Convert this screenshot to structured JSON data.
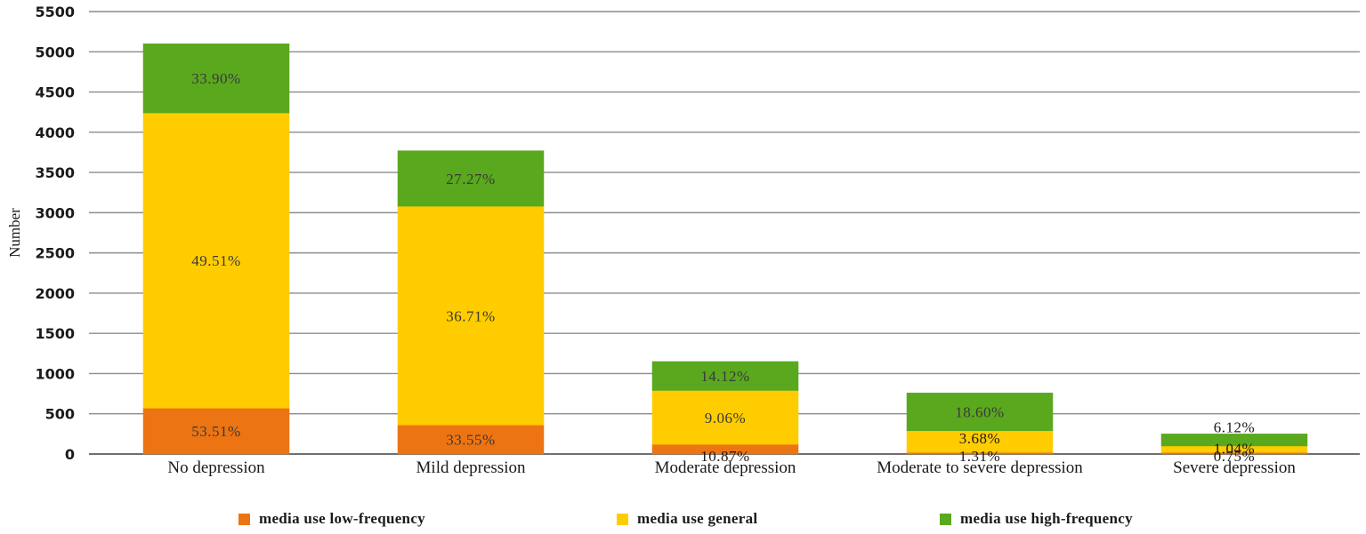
{
  "chart_data": {
    "type": "stacked-bar",
    "ylabel": "Number",
    "xlabel": "",
    "ylim": [
      0,
      5500
    ],
    "yticks": [
      0,
      500,
      1000,
      1500,
      2000,
      2500,
      3000,
      3500,
      4000,
      4500,
      5000,
      5500
    ],
    "grid": true,
    "legend_position": "bottom",
    "categories": [
      "No depression",
      "Mild depression",
      "Moderate depression",
      "Moderate to severe depression",
      "Severe depression"
    ],
    "series": [
      {
        "name": "media use low-frequency",
        "color": "#ed7412",
        "values": [
          570,
          360,
          120,
          20,
          20
        ],
        "labels": [
          "53.51%",
          "33.55%",
          "10.87%",
          "1.31%",
          "0.75%"
        ]
      },
      {
        "name": "media use general",
        "color": "#ffcc00",
        "values": [
          3670,
          2720,
          670,
          270,
          80
        ],
        "labels": [
          "49.51%",
          "36.71%",
          "9.06%",
          "3.68%",
          "1.04%"
        ]
      },
      {
        "name": "media use high-frequency",
        "color": "#5aa81e",
        "values": [
          860,
          690,
          360,
          470,
          150
        ],
        "labels": [
          "33.90%",
          "27.27%",
          "14.12%",
          "18.60%",
          "6.12%"
        ]
      }
    ]
  }
}
